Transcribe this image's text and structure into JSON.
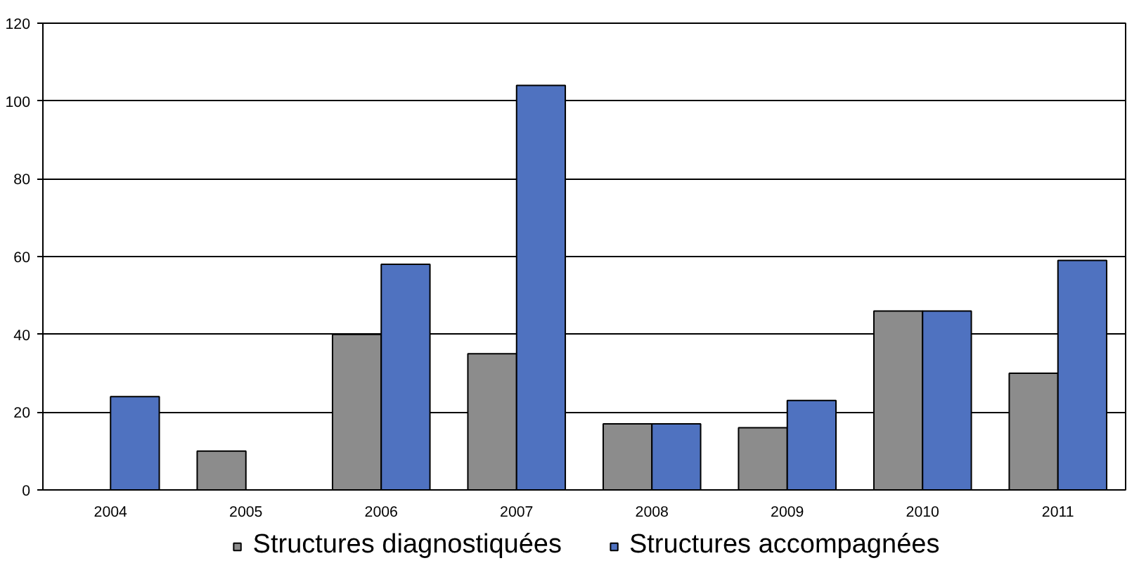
{
  "chart_data": {
    "type": "bar",
    "categories": [
      "2004",
      "2005",
      "2006",
      "2007",
      "2008",
      "2009",
      "2010",
      "2011"
    ],
    "series": [
      {
        "name": "Structures diagnostiquées",
        "color": "#8c8c8c",
        "values": [
          null,
          10,
          40,
          35,
          17,
          16,
          46,
          30
        ]
      },
      {
        "name": "Structures accompagnées",
        "color": "#4f72c0",
        "values": [
          24,
          null,
          58,
          104,
          17,
          23,
          46,
          59
        ]
      }
    ],
    "ylim": [
      0,
      120
    ],
    "yticks": [
      0,
      20,
      40,
      60,
      80,
      100,
      120
    ],
    "grid": "y",
    "legend": "bottom"
  }
}
